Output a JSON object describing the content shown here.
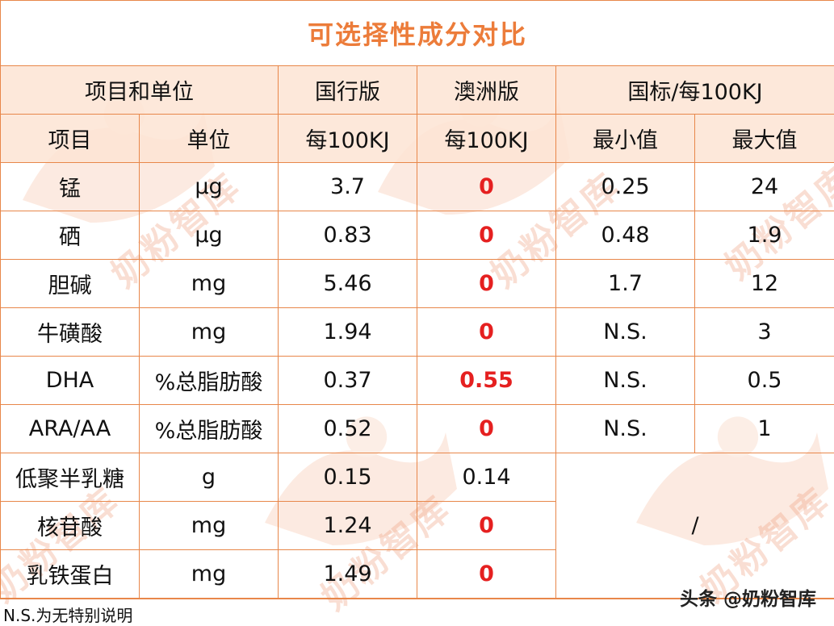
{
  "title": "可选择性成分对比",
  "group_headers": {
    "item_unit": "项目和单位",
    "domestic": "国行版",
    "australia": "澳洲版",
    "standard": "国标/每100KJ"
  },
  "sub_headers": {
    "item": "项目",
    "unit": "单位",
    "domestic": "每100KJ",
    "australia": "每100KJ",
    "min": "最小值",
    "max": "最大值"
  },
  "rows": [
    {
      "item": "锰",
      "unit": "μg",
      "domestic": "3.7",
      "australia": "0",
      "min": "0.25",
      "max": "24"
    },
    {
      "item": "硒",
      "unit": "μg",
      "domestic": "0.83",
      "australia": "0",
      "min": "0.48",
      "max": "1.9"
    },
    {
      "item": "胆碱",
      "unit": "mg",
      "domestic": "5.46",
      "australia": "0",
      "min": "1.7",
      "max": "12"
    },
    {
      "item": "牛磺酸",
      "unit": "mg",
      "domestic": "1.94",
      "australia": "0",
      "min": "N.S.",
      "max": "3"
    },
    {
      "item": "DHA",
      "unit": "%总脂肪酸",
      "domestic": "0.37",
      "australia": "0.55",
      "min": "N.S.",
      "max": "0.5"
    },
    {
      "item": "ARA/AA",
      "unit": "%总脂肪酸",
      "domestic": "0.52",
      "australia": "0",
      "min": "N.S.",
      "max": "1"
    },
    {
      "item": "低聚半乳糖",
      "unit": "g",
      "domestic": "0.15",
      "australia": "0.14"
    },
    {
      "item": "核苷酸",
      "unit": "mg",
      "domestic": "1.24",
      "australia": "0"
    },
    {
      "item": "乳铁蛋白",
      "unit": "mg",
      "domestic": "1.49",
      "australia": "0"
    }
  ],
  "standard_na": "/",
  "footnote": "N.S.为无特别说明",
  "watermark": {
    "brand": "头条 @奶粉智库",
    "text": "奶粉智库"
  },
  "colors": {
    "title": "#ec7c3a",
    "border": "#e8874a",
    "header_bg": "#fde4d4",
    "highlight": "#e52020"
  }
}
